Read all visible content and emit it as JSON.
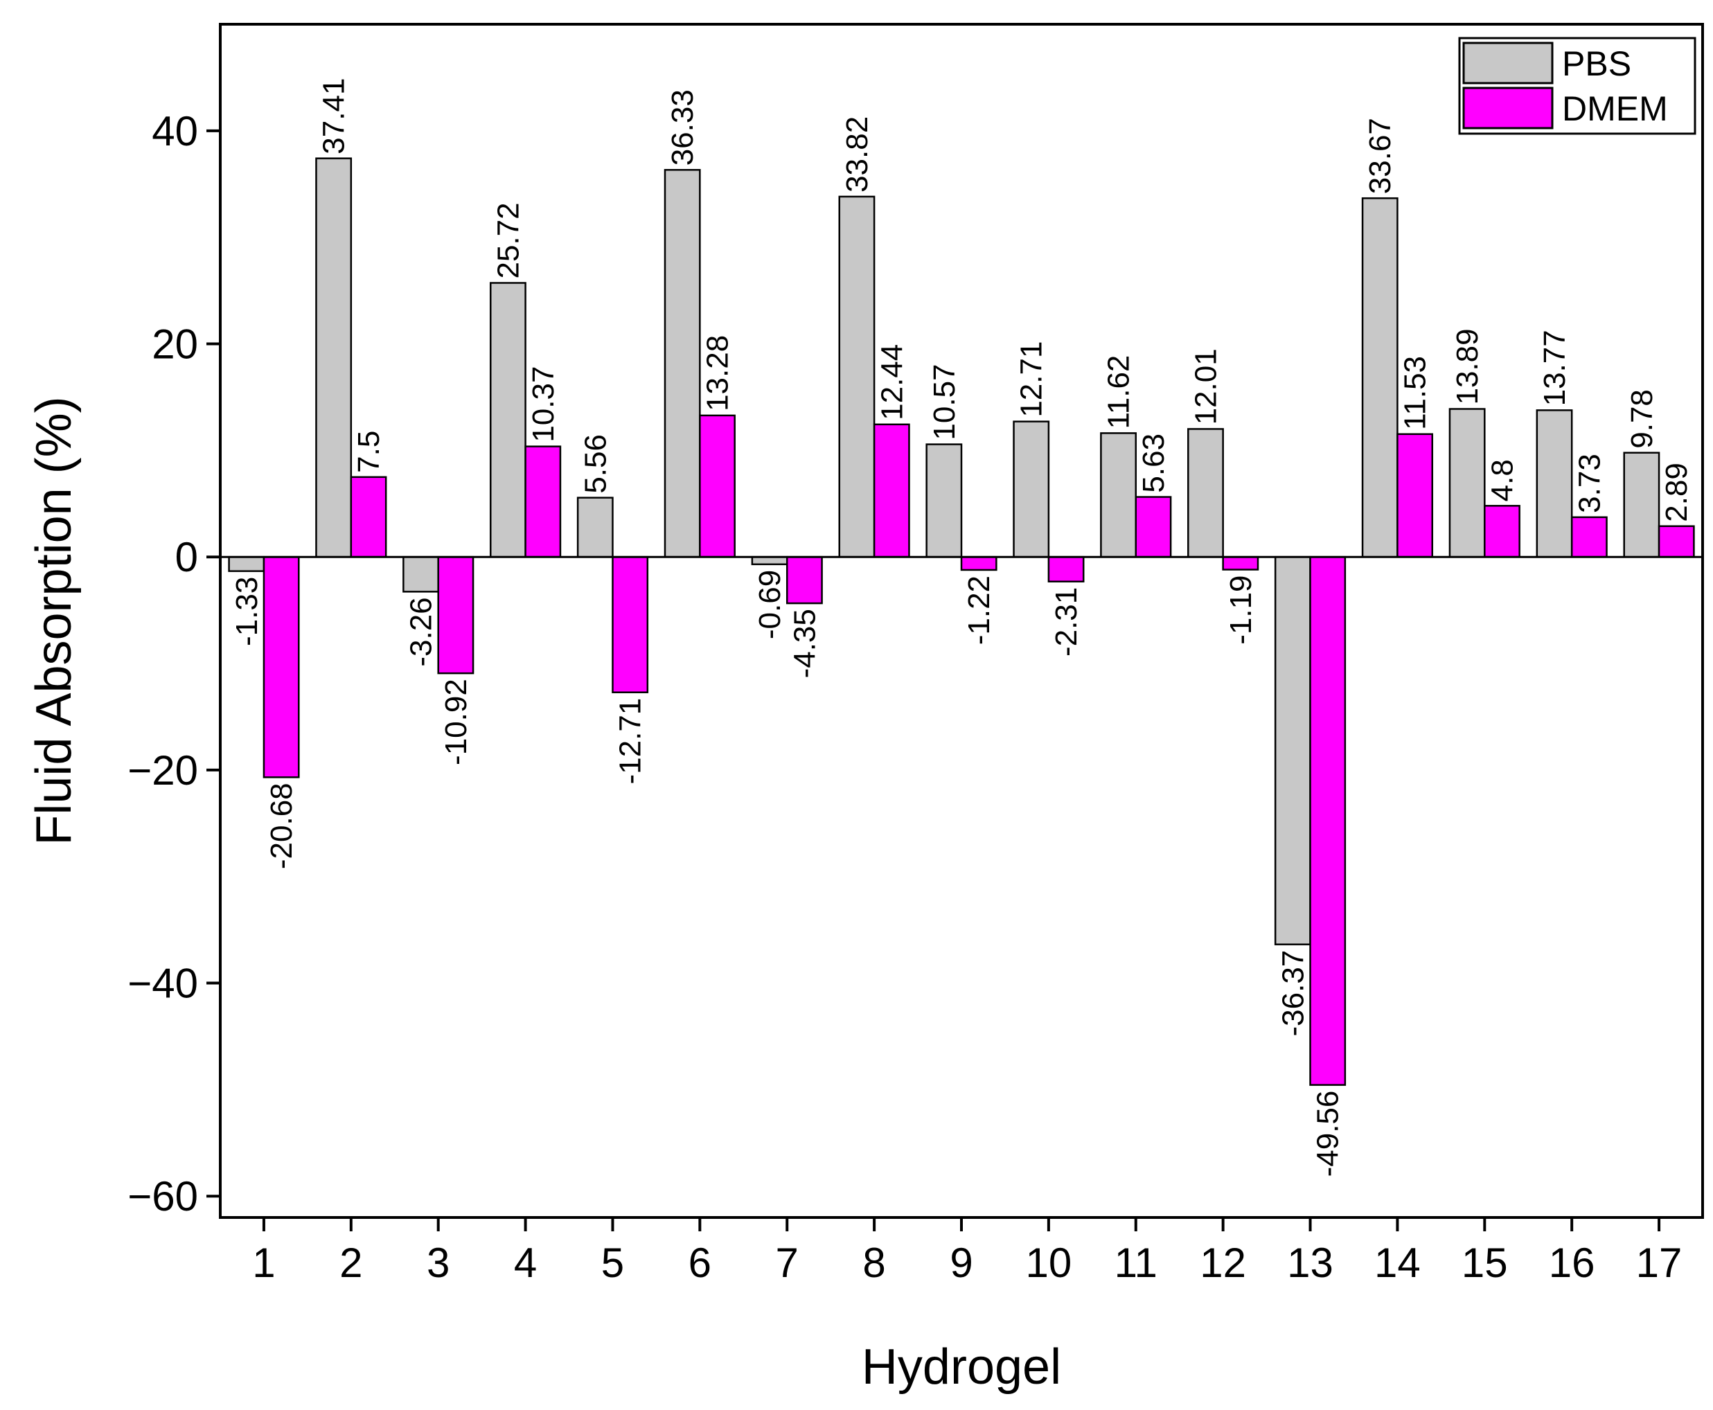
{
  "chart_data": {
    "type": "bar",
    "title": "",
    "xlabel": "Hydrogel",
    "ylabel": "Fluid Absorption (%)",
    "ylim": [
      -62,
      50
    ],
    "yticks": [
      -60,
      -40,
      -20,
      0,
      20,
      40
    ],
    "ytick_labels": [
      "−60",
      "−40",
      "−20",
      "0",
      "20",
      "40"
    ],
    "grid": false,
    "legend_position": "top-right",
    "categories": [
      "1",
      "2",
      "3",
      "4",
      "5",
      "6",
      "7",
      "8",
      "9",
      "10",
      "11",
      "12",
      "13",
      "14",
      "15",
      "16",
      "17"
    ],
    "series": [
      {
        "name": "PBS",
        "color": "#c8c8c8",
        "values": [
          -1.33,
          37.41,
          -3.26,
          25.72,
          5.56,
          36.33,
          -0.69,
          33.82,
          10.57,
          12.71,
          11.62,
          12.01,
          -36.37,
          33.67,
          13.89,
          13.77,
          9.78
        ],
        "labels": [
          "-1.33",
          "37.41",
          "-3.26",
          "25.72",
          "5.56",
          "36.33",
          "-0.69",
          "33.82",
          "10.57",
          "12.71",
          "11.62",
          "12.01",
          "-36.37",
          "33.67",
          "13.89",
          "13.77",
          "9.78"
        ]
      },
      {
        "name": "DMEM",
        "color": "#ff00ff",
        "values": [
          -20.68,
          7.5,
          -10.92,
          10.37,
          -12.71,
          13.28,
          -4.35,
          12.44,
          -1.22,
          -2.31,
          5.63,
          -1.19,
          -49.56,
          11.53,
          4.8,
          3.73,
          2.89
        ],
        "labels": [
          "-20.68",
          "7.5",
          "-10.92",
          "10.37",
          "-12.71",
          "13.28",
          "-4.35",
          "12.44",
          "-1.22",
          "-2.31",
          "5.63",
          "-1.19",
          "-49.56",
          "11.53",
          "4.8",
          "3.73",
          "2.89"
        ]
      }
    ]
  }
}
